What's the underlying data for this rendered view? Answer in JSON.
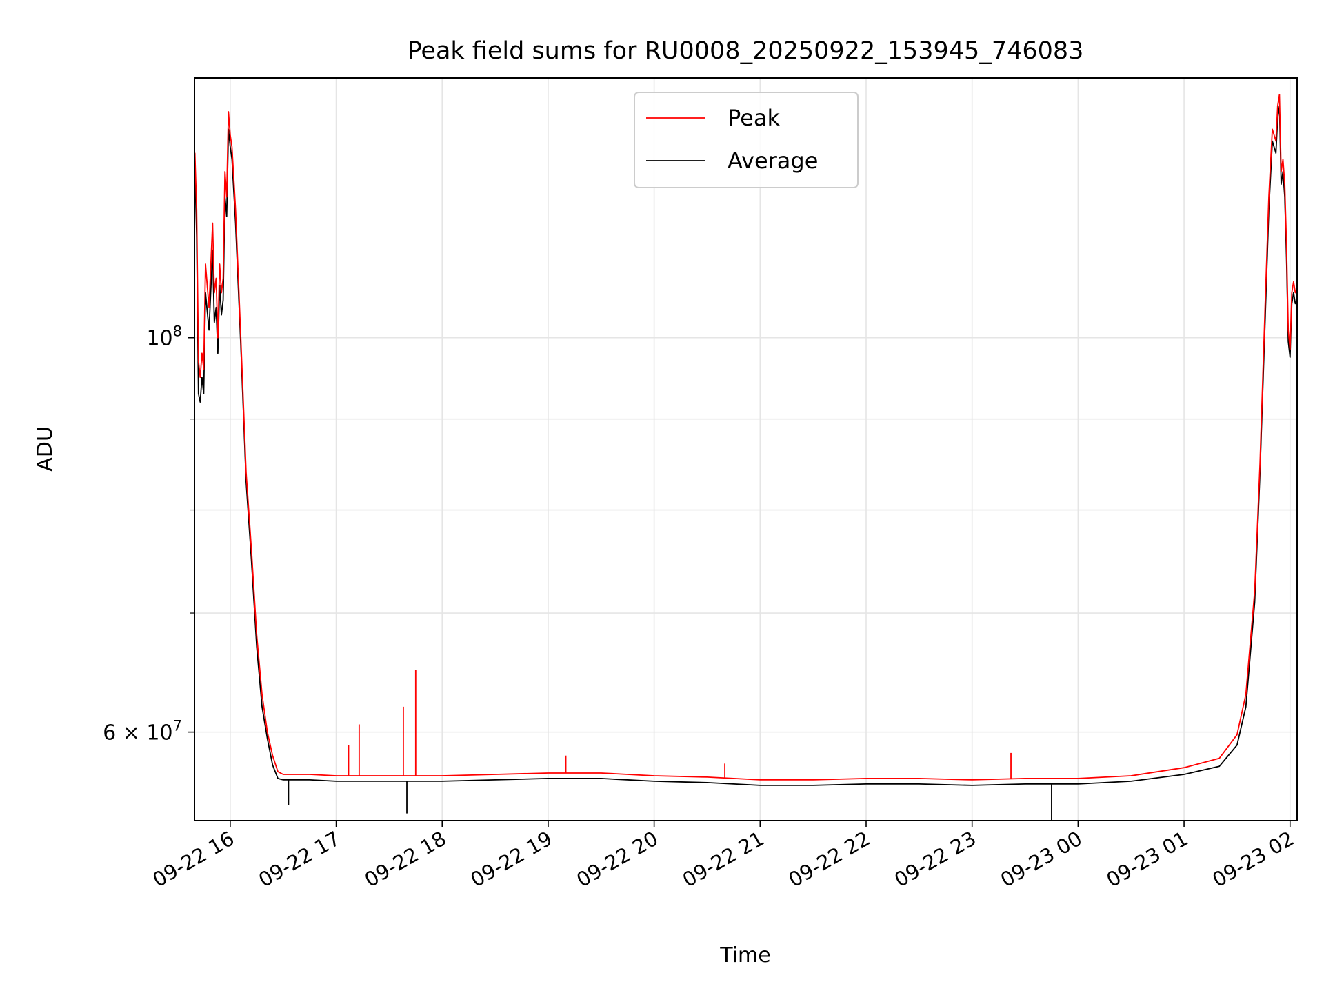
{
  "chart_data": {
    "type": "line",
    "title": "Peak field sums for RU0008_20250922_153945_746083",
    "xlabel": "Time",
    "ylabel": "ADU",
    "y_scale": "log",
    "grid": true,
    "legend_position": "top-center",
    "x_range": [
      "2025-09-22 15:39:45",
      "2025-09-23 02:04:00"
    ],
    "ylim": [
      53500000,
      140000000
    ],
    "x_ticks": [
      "09-22 16",
      "09-22 17",
      "09-22 18",
      "09-22 19",
      "09-22 20",
      "09-22 21",
      "09-22 22",
      "09-22 23",
      "09-23 00",
      "09-23 01",
      "09-23 02"
    ],
    "x_tick_times": [
      "2025-09-22 16:00",
      "2025-09-22 17:00",
      "2025-09-22 18:00",
      "2025-09-22 19:00",
      "2025-09-22 20:00",
      "2025-09-22 21:00",
      "2025-09-22 22:00",
      "2025-09-22 23:00",
      "2025-09-23 00:00",
      "2025-09-23 01:00",
      "2025-09-23 02:00"
    ],
    "y_major_ticks": [
      {
        "value": 100000000,
        "mantissa": "",
        "base": "10",
        "exp": "8"
      },
      {
        "value": 60000000,
        "mantissa": "6 × ",
        "base": "10",
        "exp": "7"
      }
    ],
    "y_minor_ticks": [
      70000000,
      80000000,
      90000000
    ],
    "colors": {
      "peak": "#ff0000",
      "average": "#000000"
    },
    "series": [
      {
        "name": "Peak",
        "color": "#ff0000",
        "points": [
          [
            "2025-09-22 15:39:45",
            126000000
          ],
          [
            "2025-09-22 15:40",
            127000000
          ],
          [
            "2025-09-22 15:41",
            118000000
          ],
          [
            "2025-09-22 15:42",
            97000000
          ],
          [
            "2025-09-22 15:43",
            95000000
          ],
          [
            "2025-09-22 15:44",
            98000000
          ],
          [
            "2025-09-22 15:45",
            96000000
          ],
          [
            "2025-09-22 15:46",
            110000000
          ],
          [
            "2025-09-22 15:48",
            104000000
          ],
          [
            "2025-09-22 15:50",
            116000000
          ],
          [
            "2025-09-22 15:51",
            106000000
          ],
          [
            "2025-09-22 15:52",
            108000000
          ],
          [
            "2025-09-22 15:53",
            100000000
          ],
          [
            "2025-09-22 15:54",
            110000000
          ],
          [
            "2025-09-22 15:55",
            106000000
          ],
          [
            "2025-09-22 15:56",
            108000000
          ],
          [
            "2025-09-22 15:57",
            124000000
          ],
          [
            "2025-09-22 15:58",
            120000000
          ],
          [
            "2025-09-22 15:59",
            134000000
          ],
          [
            "2025-09-22 16:00",
            130000000
          ],
          [
            "2025-09-22 16:01",
            128000000
          ],
          [
            "2025-09-22 16:03",
            118000000
          ],
          [
            "2025-09-22 16:06",
            100000000
          ],
          [
            "2025-09-22 16:09",
            84000000
          ],
          [
            "2025-09-22 16:12",
            76000000
          ],
          [
            "2025-09-22 16:15",
            68000000
          ],
          [
            "2025-09-22 16:18",
            63000000
          ],
          [
            "2025-09-22 16:21",
            60000000
          ],
          [
            "2025-09-22 16:24",
            58200000
          ],
          [
            "2025-09-22 16:27",
            57000000
          ],
          [
            "2025-09-22 16:30",
            56800000
          ],
          [
            "2025-09-22 16:45",
            56800000
          ],
          [
            "2025-09-22 17:00",
            56700000
          ],
          [
            "2025-09-22 17:30",
            56700000
          ],
          [
            "2025-09-22 18:00",
            56700000
          ],
          [
            "2025-09-22 18:30",
            56800000
          ],
          [
            "2025-09-22 19:00",
            56900000
          ],
          [
            "2025-09-22 19:30",
            56900000
          ],
          [
            "2025-09-22 20:00",
            56700000
          ],
          [
            "2025-09-22 20:30",
            56600000
          ],
          [
            "2025-09-22 21:00",
            56400000
          ],
          [
            "2025-09-22 21:30",
            56400000
          ],
          [
            "2025-09-22 22:00",
            56500000
          ],
          [
            "2025-09-22 22:30",
            56500000
          ],
          [
            "2025-09-22 23:00",
            56400000
          ],
          [
            "2025-09-22 23:30",
            56500000
          ],
          [
            "2025-09-23 00:00",
            56500000
          ],
          [
            "2025-09-23 00:30",
            56700000
          ],
          [
            "2025-09-23 01:00",
            57300000
          ],
          [
            "2025-09-23 01:20",
            58000000
          ],
          [
            "2025-09-23 01:30",
            59800000
          ],
          [
            "2025-09-23 01:35",
            63000000
          ],
          [
            "2025-09-23 01:40",
            72000000
          ],
          [
            "2025-09-23 01:43",
            85000000
          ],
          [
            "2025-09-23 01:46",
            105000000
          ],
          [
            "2025-09-23 01:48",
            120000000
          ],
          [
            "2025-09-23 01:50",
            131000000
          ],
          [
            "2025-09-23 01:52",
            129000000
          ],
          [
            "2025-09-23 01:53",
            135000000
          ],
          [
            "2025-09-23 01:54",
            137000000
          ],
          [
            "2025-09-23 01:55",
            124000000
          ],
          [
            "2025-09-23 01:56",
            126000000
          ],
          [
            "2025-09-23 01:57",
            122000000
          ],
          [
            "2025-09-23 01:58",
            113000000
          ],
          [
            "2025-09-23 01:59",
            101000000
          ],
          [
            "2025-09-23 02:00",
            98500000
          ],
          [
            "2025-09-23 02:01",
            106000000
          ],
          [
            "2025-09-23 02:02",
            107500000
          ],
          [
            "2025-09-23 02:03",
            106000000
          ],
          [
            "2025-09-23 02:04",
            106500000
          ]
        ]
      },
      {
        "name": "Average",
        "color": "#000000",
        "points": [
          [
            "2025-09-22 15:39:45",
            124000000
          ],
          [
            "2025-09-22 15:40",
            125000000
          ],
          [
            "2025-09-22 15:41",
            114000000
          ],
          [
            "2025-09-22 15:42",
            93000000
          ],
          [
            "2025-09-22 15:43",
            92000000
          ],
          [
            "2025-09-22 15:44",
            95000000
          ],
          [
            "2025-09-22 15:45",
            93000000
          ],
          [
            "2025-09-22 15:46",
            106000000
          ],
          [
            "2025-09-22 15:48",
            101000000
          ],
          [
            "2025-09-22 15:50",
            112000000
          ],
          [
            "2025-09-22 15:51",
            102000000
          ],
          [
            "2025-09-22 15:52",
            104000000
          ],
          [
            "2025-09-22 15:53",
            98000000
          ],
          [
            "2025-09-22 15:54",
            107000000
          ],
          [
            "2025-09-22 15:55",
            103000000
          ],
          [
            "2025-09-22 15:56",
            105000000
          ],
          [
            "2025-09-22 15:57",
            120000000
          ],
          [
            "2025-09-22 15:58",
            117000000
          ],
          [
            "2025-09-22 15:59",
            131000000
          ],
          [
            "2025-09-22 16:00",
            128000000
          ],
          [
            "2025-09-22 16:01",
            126000000
          ],
          [
            "2025-09-22 16:03",
            116000000
          ],
          [
            "2025-09-22 16:06",
            99000000
          ],
          [
            "2025-09-22 16:09",
            83000000
          ],
          [
            "2025-09-22 16:12",
            75000000
          ],
          [
            "2025-09-22 16:15",
            67000000
          ],
          [
            "2025-09-22 16:18",
            62000000
          ],
          [
            "2025-09-22 16:21",
            59500000
          ],
          [
            "2025-09-22 16:24",
            57500000
          ],
          [
            "2025-09-22 16:27",
            56500000
          ],
          [
            "2025-09-22 16:30",
            56400000
          ],
          [
            "2025-09-22 16:45",
            56400000
          ],
          [
            "2025-09-22 17:00",
            56300000
          ],
          [
            "2025-09-22 17:30",
            56300000
          ],
          [
            "2025-09-22 18:00",
            56300000
          ],
          [
            "2025-09-22 18:30",
            56400000
          ],
          [
            "2025-09-22 19:00",
            56500000
          ],
          [
            "2025-09-22 19:30",
            56500000
          ],
          [
            "2025-09-22 20:00",
            56300000
          ],
          [
            "2025-09-22 20:30",
            56200000
          ],
          [
            "2025-09-22 21:00",
            56000000
          ],
          [
            "2025-09-22 21:30",
            56000000
          ],
          [
            "2025-09-22 22:00",
            56100000
          ],
          [
            "2025-09-22 22:30",
            56100000
          ],
          [
            "2025-09-22 23:00",
            56000000
          ],
          [
            "2025-09-22 23:30",
            56100000
          ],
          [
            "2025-09-23 00:00",
            56100000
          ],
          [
            "2025-09-23 00:30",
            56300000
          ],
          [
            "2025-09-23 01:00",
            56800000
          ],
          [
            "2025-09-23 01:20",
            57400000
          ],
          [
            "2025-09-23 01:30",
            59000000
          ],
          [
            "2025-09-23 01:35",
            62000000
          ],
          [
            "2025-09-23 01:40",
            71000000
          ],
          [
            "2025-09-23 01:43",
            84000000
          ],
          [
            "2025-09-23 01:46",
            103000000
          ],
          [
            "2025-09-23 01:48",
            118000000
          ],
          [
            "2025-09-23 01:50",
            129000000
          ],
          [
            "2025-09-23 01:52",
            127000000
          ],
          [
            "2025-09-23 01:53",
            133000000
          ],
          [
            "2025-09-23 01:54",
            135000000
          ],
          [
            "2025-09-23 01:55",
            122000000
          ],
          [
            "2025-09-23 01:56",
            124000000
          ],
          [
            "2025-09-23 01:57",
            120000000
          ],
          [
            "2025-09-23 01:58",
            111000000
          ],
          [
            "2025-09-23 01:59",
            99500000
          ],
          [
            "2025-09-23 02:00",
            97500000
          ],
          [
            "2025-09-23 02:01",
            104500000
          ],
          [
            "2025-09-23 02:02",
            106000000
          ],
          [
            "2025-09-23 02:03",
            104500000
          ],
          [
            "2025-09-23 02:04",
            105000000
          ]
        ]
      }
    ],
    "spikes": [
      {
        "series": "Peak",
        "time": "2025-09-22 17:07",
        "value": 59000000
      },
      {
        "series": "Peak",
        "time": "2025-09-22 17:13",
        "value": 60600000
      },
      {
        "series": "Peak",
        "time": "2025-09-22 17:38",
        "value": 62000000
      },
      {
        "series": "Peak",
        "time": "2025-09-22 17:45",
        "value": 65000000
      },
      {
        "series": "Peak",
        "time": "2025-09-22 19:10",
        "value": 58200000
      },
      {
        "series": "Peak",
        "time": "2025-09-22 20:40",
        "value": 57600000
      },
      {
        "series": "Peak",
        "time": "2025-09-22 23:22",
        "value": 58400000
      },
      {
        "series": "Average",
        "time": "2025-09-22 16:33",
        "value": 54600000
      },
      {
        "series": "Average",
        "time": "2025-09-22 17:40",
        "value": 54000000
      },
      {
        "series": "Average",
        "time": "2025-09-22 23:45",
        "value": 53500000
      }
    ]
  }
}
